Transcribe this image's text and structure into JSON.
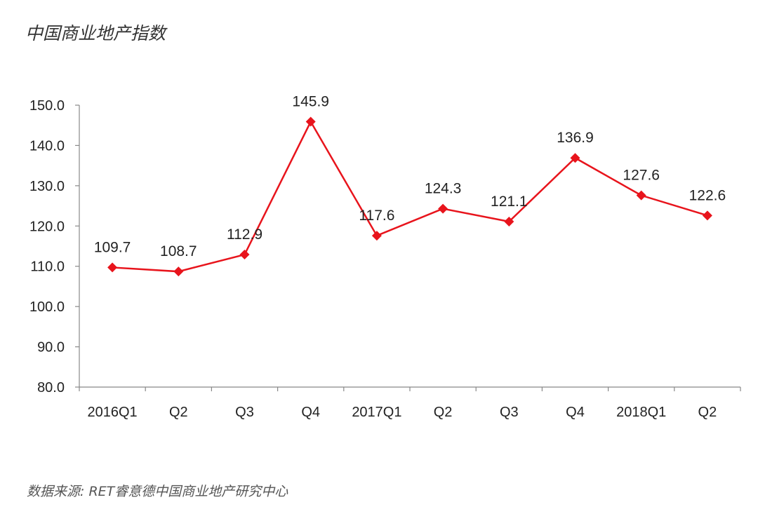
{
  "chart_data": {
    "type": "line",
    "title": "中国商业地产指数",
    "source": "数据来源: RET睿意德中国商业地产研究中心",
    "categories": [
      "2016Q1",
      "Q2",
      "Q3",
      "Q4",
      "2017Q1",
      "Q2",
      "Q3",
      "Q4",
      "2018Q1",
      "Q2"
    ],
    "series": [
      {
        "name": "中国商业地产指数",
        "values": [
          109.7,
          108.7,
          112.9,
          145.9,
          117.6,
          124.3,
          121.1,
          136.9,
          127.6,
          122.6
        ],
        "color": "#e8141c"
      }
    ],
    "ylim": [
      80,
      150
    ],
    "yticks": [
      "80.0",
      "90.0",
      "100.0",
      "110.0",
      "120.0",
      "130.0",
      "140.0",
      "150.0"
    ],
    "xlabel": "",
    "ylabel": "",
    "grid": false,
    "legend": "none"
  }
}
